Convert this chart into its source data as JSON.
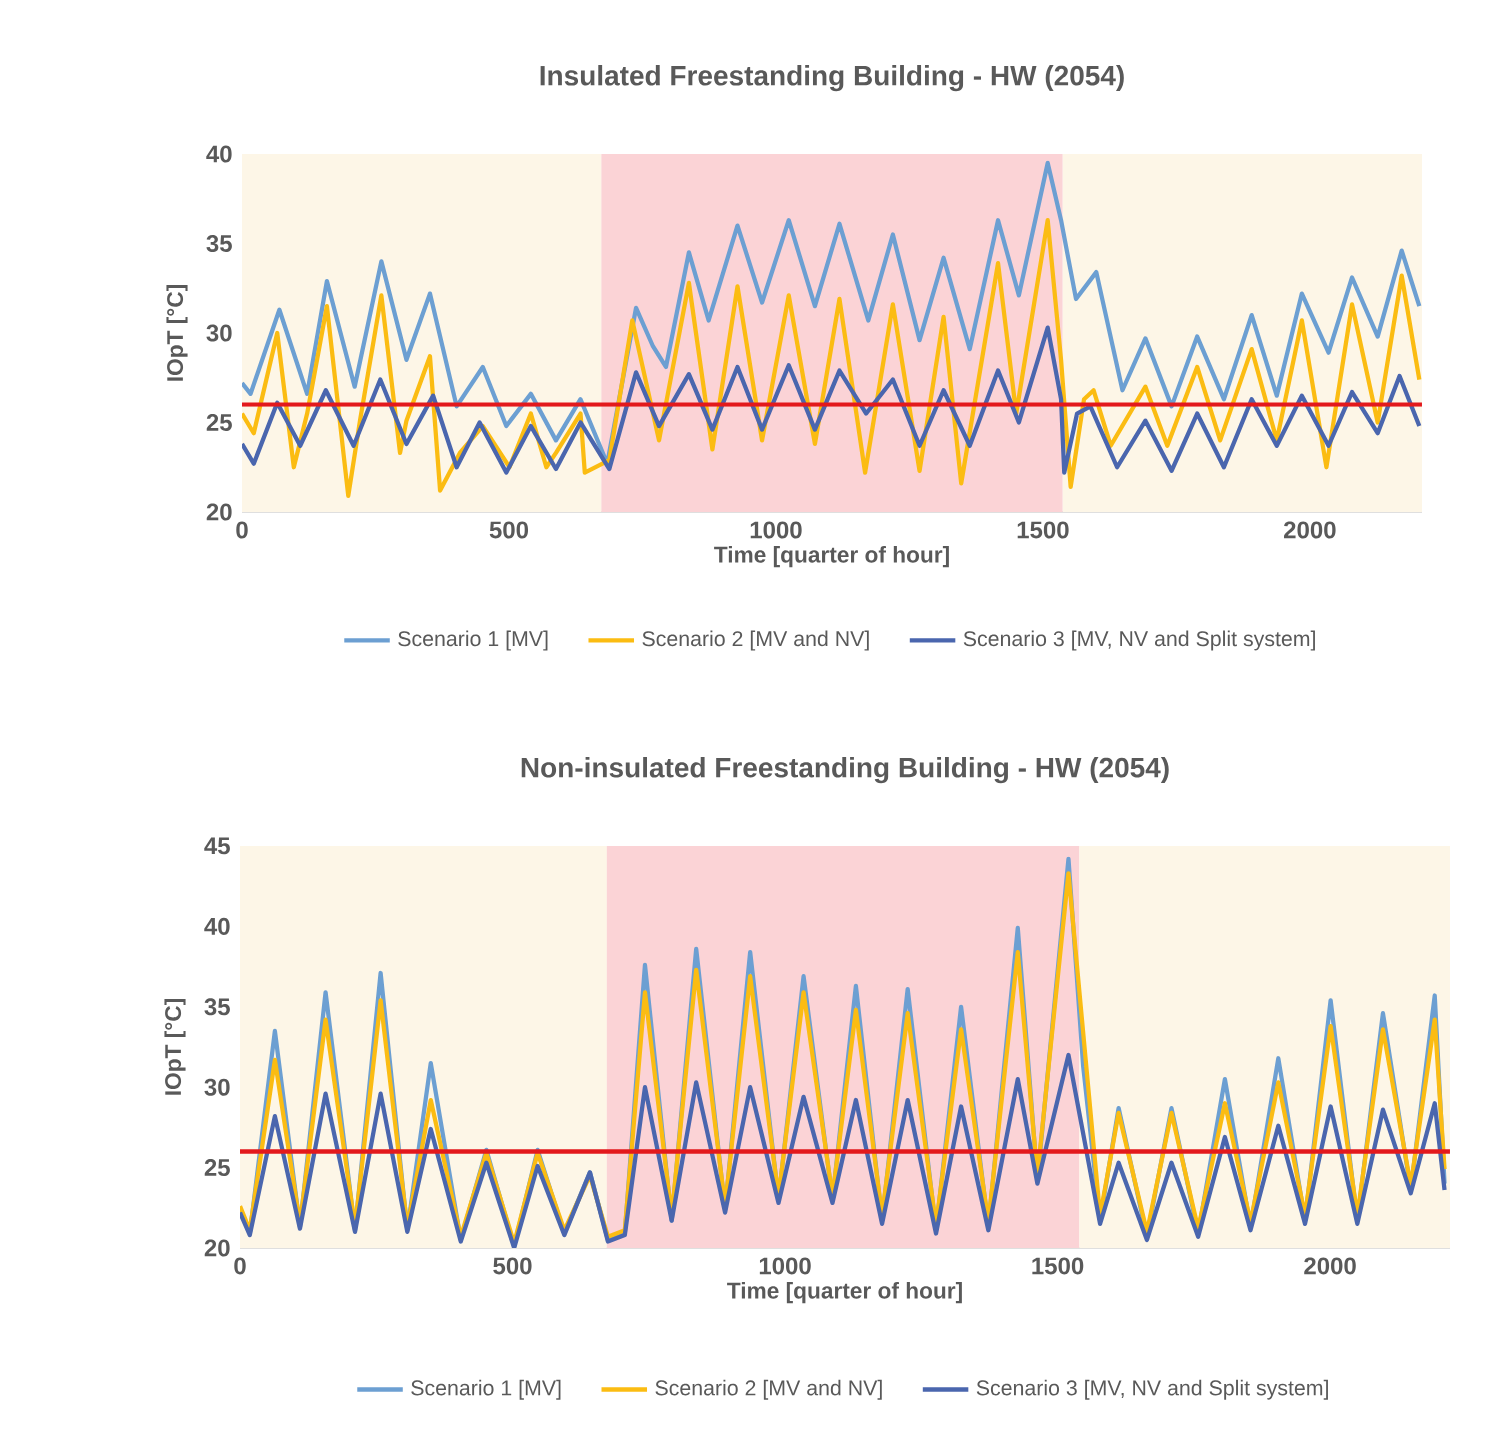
{
  "chart_data": [
    {
      "type": "line",
      "title": "Insulated Freestanding Building - HW (2054)",
      "xlabel": "Time [quarter of hour]",
      "ylabel": "IOpT [°C]",
      "xlim": [
        0,
        2210
      ],
      "ylim": [
        20,
        40
      ],
      "xticks": [
        0,
        500,
        1000,
        1500,
        2000
      ],
      "yticks": [
        20,
        25,
        30,
        35,
        40
      ],
      "legend": "bottom",
      "bands": [
        {
          "axis": "x",
          "from": 0,
          "to": 673,
          "color": "#fdf6e7"
        },
        {
          "axis": "x",
          "from": 673,
          "to": 1537,
          "color": "#fbd3d6"
        },
        {
          "axis": "x",
          "from": 1537,
          "to": 2210,
          "color": "#fdf6e7"
        }
      ],
      "ref_lines": [
        {
          "axis": "y",
          "value": 26,
          "color": "#e3191c"
        }
      ],
      "series": [
        {
          "name": "Scenario 1 [MV]",
          "color": "#6c9fd2",
          "x": [
            0,
            16,
            70,
            122,
            159,
            211,
            261,
            308,
            352,
            402,
            451,
            495,
            541,
            588,
            634,
            684,
            738,
            769,
            794,
            837,
            874,
            928,
            974,
            1024,
            1073,
            1119,
            1173,
            1219,
            1269,
            1314,
            1363,
            1416,
            1455,
            1509,
            1534,
            1562,
            1600,
            1649,
            1692,
            1741,
            1789,
            1839,
            1891,
            1938,
            1985,
            2035,
            2079,
            2127,
            2172,
            2205
          ],
          "values": [
            27.2,
            26.6,
            31.3,
            26.6,
            32.9,
            27.0,
            34.0,
            28.5,
            32.2,
            25.9,
            28.1,
            24.8,
            26.6,
            24.0,
            26.3,
            22.7,
            31.4,
            29.3,
            28.1,
            34.5,
            30.7,
            36.0,
            31.7,
            36.3,
            31.5,
            36.1,
            30.7,
            35.5,
            29.6,
            34.2,
            29.1,
            36.3,
            32.1,
            39.5,
            36.3,
            31.9,
            33.4,
            26.8,
            29.7,
            25.9,
            29.8,
            26.3,
            31.0,
            26.5,
            32.2,
            28.9,
            33.1,
            29.8,
            34.6,
            31.5
          ]
        },
        {
          "name": "Scenario 2 [MV and NV]",
          "color": "#fbbc12",
          "x": [
            0,
            22,
            66,
            97,
            122,
            159,
            199,
            221,
            261,
            296,
            308,
            352,
            371,
            408,
            451,
            501,
            541,
            570,
            588,
            634,
            642,
            688,
            731,
            781,
            837,
            881,
            928,
            974,
            1024,
            1073,
            1119,
            1167,
            1219,
            1269,
            1314,
            1347,
            1416,
            1450,
            1509,
            1534,
            1552,
            1577,
            1595,
            1627,
            1692,
            1733,
            1789,
            1832,
            1891,
            1938,
            1985,
            2031,
            2079,
            2127,
            2172,
            2205
          ],
          "values": [
            25.5,
            24.4,
            30.0,
            22.5,
            25.5,
            31.5,
            20.9,
            25.1,
            32.1,
            23.3,
            25.1,
            28.7,
            21.2,
            23.3,
            24.8,
            22.5,
            25.5,
            22.5,
            23.3,
            25.5,
            22.2,
            22.9,
            30.7,
            24.0,
            32.8,
            23.5,
            32.6,
            24.0,
            32.1,
            23.8,
            31.9,
            22.2,
            31.6,
            22.3,
            30.9,
            21.6,
            33.9,
            25.5,
            36.3,
            28.5,
            21.4,
            26.3,
            26.8,
            23.7,
            27.0,
            23.7,
            28.1,
            24.0,
            29.1,
            24.0,
            30.7,
            22.5,
            31.6,
            25.0,
            33.2,
            27.4
          ]
        },
        {
          "name": "Scenario 3 [MV, NV and Split system]",
          "color": "#4a66ae",
          "x": [
            0,
            22,
            66,
            109,
            157,
            209,
            259,
            308,
            358,
            402,
            445,
            495,
            541,
            588,
            634,
            688,
            738,
            781,
            837,
            881,
            928,
            974,
            1024,
            1073,
            1119,
            1169,
            1219,
            1269,
            1314,
            1363,
            1416,
            1455,
            1509,
            1534,
            1540,
            1564,
            1589,
            1639,
            1692,
            1741,
            1789,
            1839,
            1891,
            1938,
            1985,
            2035,
            2079,
            2127,
            2168,
            2205
          ],
          "values": [
            23.8,
            22.7,
            26.1,
            23.7,
            26.8,
            23.7,
            27.4,
            23.8,
            26.5,
            22.5,
            25.0,
            22.2,
            24.8,
            22.4,
            25.0,
            22.4,
            27.8,
            24.8,
            27.7,
            24.6,
            28.1,
            24.6,
            28.2,
            24.6,
            27.9,
            25.5,
            27.4,
            23.7,
            26.8,
            23.7,
            27.9,
            25.0,
            30.3,
            26.3,
            22.2,
            25.5,
            25.9,
            22.5,
            25.1,
            22.3,
            25.5,
            22.5,
            26.3,
            23.7,
            26.5,
            23.7,
            26.7,
            24.4,
            27.6,
            24.8
          ]
        }
      ]
    },
    {
      "type": "line",
      "title": "Non-insulated Freestanding Building - HW (2054)",
      "xlabel": "Time [quarter of hour]",
      "ylabel": "IOpT [°C]",
      "xlim": [
        0,
        2220
      ],
      "ylim": [
        20,
        45
      ],
      "xticks": [
        0,
        500,
        1000,
        1500,
        2000
      ],
      "yticks": [
        20,
        25,
        30,
        35,
        40,
        45
      ],
      "legend": "bottom",
      "bands": [
        {
          "axis": "x",
          "from": 0,
          "to": 673,
          "color": "#fdf6e7"
        },
        {
          "axis": "x",
          "from": 673,
          "to": 1540,
          "color": "#fbd3d6"
        },
        {
          "axis": "x",
          "from": 1540,
          "to": 2220,
          "color": "#fdf6e7"
        }
      ],
      "ref_lines": [
        {
          "axis": "y",
          "value": 26,
          "color": "#e3191c"
        }
      ],
      "series": [
        {
          "name": "Scenario 1 [MV]",
          "color": "#6c9fd2",
          "x": [
            0,
            18,
            64,
            110,
            157,
            211,
            258,
            307,
            350,
            405,
            452,
            503,
            546,
            595,
            642,
            675,
            706,
            743,
            792,
            837,
            890,
            936,
            988,
            1034,
            1087,
            1130,
            1178,
            1225,
            1277,
            1323,
            1373,
            1427,
            1463,
            1520,
            1547,
            1578,
            1612,
            1664,
            1709,
            1758,
            1807,
            1854,
            1905,
            1954,
            2001,
            2050,
            2097,
            2148,
            2192,
            2210
          ],
          "values": [
            22.4,
            20.9,
            33.5,
            21.3,
            35.9,
            21.1,
            37.1,
            21.1,
            31.5,
            20.5,
            26.1,
            20.1,
            26.1,
            20.9,
            24.7,
            20.5,
            20.9,
            37.6,
            21.7,
            38.6,
            22.4,
            38.4,
            23.0,
            36.9,
            23.0,
            36.3,
            21.7,
            36.1,
            21.1,
            35.0,
            21.3,
            39.9,
            24.2,
            44.2,
            31.3,
            21.7,
            28.7,
            20.7,
            28.7,
            20.9,
            30.5,
            21.3,
            31.8,
            21.7,
            35.4,
            21.7,
            34.6,
            23.6,
            35.7,
            24.0
          ]
        },
        {
          "name": "Scenario 2 [MV and NV]",
          "color": "#fbbc12",
          "x": [
            0,
            18,
            64,
            110,
            157,
            211,
            258,
            307,
            350,
            405,
            452,
            503,
            546,
            595,
            642,
            675,
            706,
            743,
            792,
            837,
            890,
            936,
            988,
            1034,
            1087,
            1130,
            1178,
            1225,
            1277,
            1323,
            1373,
            1427,
            1463,
            1520,
            1578,
            1612,
            1664,
            1709,
            1758,
            1807,
            1854,
            1905,
            1954,
            2001,
            2050,
            2097,
            2148,
            2192,
            2210
          ],
          "values": [
            22.6,
            21.1,
            31.7,
            21.5,
            34.2,
            21.3,
            35.4,
            21.3,
            29.2,
            20.7,
            25.9,
            20.3,
            25.9,
            21.1,
            24.5,
            20.7,
            21.1,
            35.9,
            22.0,
            37.3,
            22.6,
            36.9,
            23.2,
            35.9,
            23.2,
            34.8,
            22.0,
            34.6,
            21.4,
            33.6,
            21.6,
            38.4,
            24.5,
            43.3,
            22.0,
            28.4,
            21.0,
            28.4,
            21.2,
            29.0,
            21.6,
            30.3,
            22.0,
            33.8,
            22.0,
            33.6,
            23.9,
            34.2,
            24.9
          ]
        },
        {
          "name": "Scenario 3 [MV, NV and Split system]",
          "color": "#4a66ae",
          "x": [
            0,
            18,
            64,
            110,
            157,
            211,
            258,
            307,
            350,
            405,
            452,
            503,
            546,
            595,
            642,
            675,
            706,
            743,
            792,
            837,
            890,
            936,
            988,
            1034,
            1087,
            1130,
            1178,
            1225,
            1277,
            1323,
            1373,
            1427,
            1463,
            1520,
            1578,
            1612,
            1664,
            1709,
            1758,
            1807,
            1854,
            1905,
            1954,
            2001,
            2050,
            2097,
            2148,
            2192,
            2210
          ],
          "values": [
            22.2,
            20.8,
            28.2,
            21.2,
            29.6,
            21.0,
            29.6,
            21.0,
            27.4,
            20.4,
            25.3,
            20.0,
            25.1,
            20.8,
            24.7,
            20.4,
            20.8,
            30.0,
            21.7,
            30.3,
            22.2,
            30.0,
            22.8,
            29.4,
            22.8,
            29.2,
            21.5,
            29.2,
            20.9,
            28.8,
            21.1,
            30.5,
            24.0,
            32.0,
            21.5,
            25.3,
            20.5,
            25.3,
            20.7,
            26.9,
            21.1,
            27.6,
            21.5,
            28.8,
            21.5,
            28.6,
            23.4,
            29.0,
            23.6
          ]
        }
      ]
    }
  ]
}
